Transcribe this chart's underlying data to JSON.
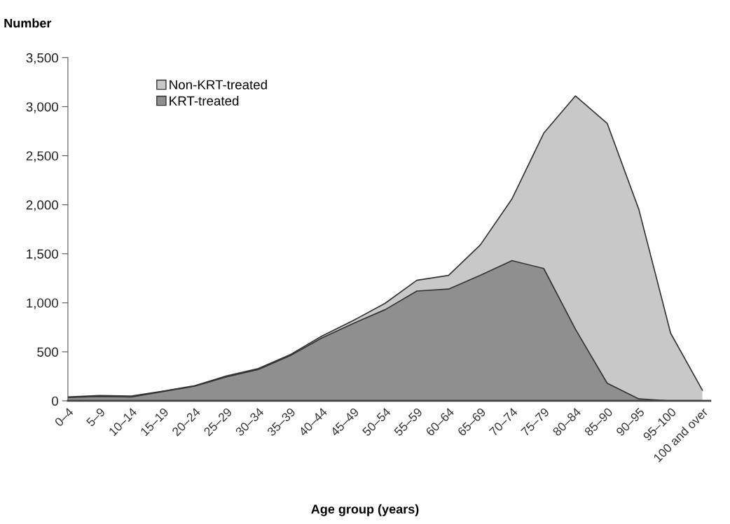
{
  "chart_data": {
    "type": "area",
    "stacked": true,
    "ylabel": "Number",
    "xlabel": "Age group (years)",
    "categories": [
      "0–4",
      "5–9",
      "10–14",
      "15–19",
      "20–24",
      "25–29",
      "30–34",
      "35–39",
      "40–44",
      "45–49",
      "50–54",
      "55–59",
      "60–64",
      "65–69",
      "70–74",
      "75–79",
      "80–84",
      "85–90",
      "90–95",
      "95–100",
      "100 and over"
    ],
    "series": [
      {
        "name": "KRT-treated",
        "color": "#8f8f8f",
        "values": [
          35,
          45,
          40,
          95,
          150,
          245,
          320,
          460,
          640,
          790,
          930,
          1120,
          1140,
          1280,
          1430,
          1350,
          730,
          180,
          20,
          0,
          0
        ]
      },
      {
        "name": "Non-KRT-treated",
        "color": "#c8c8c8",
        "values": [
          5,
          10,
          10,
          5,
          5,
          10,
          10,
          10,
          20,
          30,
          65,
          110,
          140,
          310,
          630,
          1380,
          2380,
          2650,
          1930,
          690,
          110
        ]
      }
    ],
    "ylim": [
      0,
      3500
    ],
    "yticks": [
      0,
      {
        "value": 500,
        "label": "500"
      },
      {
        "value": 1000,
        "label": "1,000"
      },
      {
        "value": 1500,
        "label": "1,500"
      },
      {
        "value": 2000,
        "label": "2,000"
      },
      {
        "value": 2500,
        "label": "2,500"
      },
      {
        "value": 3000,
        "label": "3,000"
      },
      {
        "value": 3500,
        "label": "3,500"
      }
    ],
    "grid": false,
    "legend": "top left"
  }
}
